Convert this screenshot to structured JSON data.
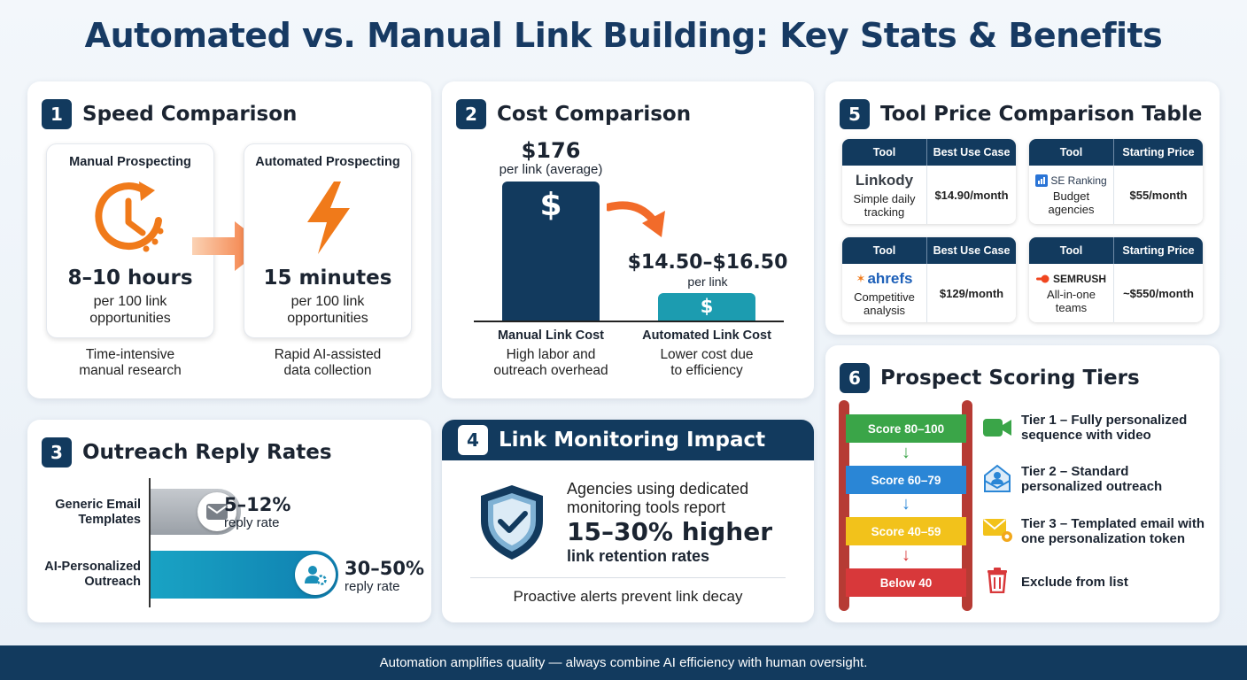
{
  "title": "Automated vs. Manual Link Building: Key Stats & Benefits",
  "speed": {
    "num": "1",
    "title": "Speed Comparison",
    "manual": {
      "label": "Manual Prospecting",
      "value": "8–10 hours",
      "sub1": "per 100 link",
      "sub2": "opportunities",
      "cap1": "Time-intensive",
      "cap2": "manual research",
      "icon": "clock-icon"
    },
    "auto": {
      "label": "Automated Prospecting",
      "value": "15 minutes",
      "sub1": "per 100 link",
      "sub2": "opportunities",
      "cap1": "Rapid AI-assisted",
      "cap2": "data collection",
      "icon": "lightning-icon"
    }
  },
  "cost": {
    "num": "2",
    "title": "Cost Comparison",
    "manual": {
      "value": "$176",
      "sub": "per link (average)",
      "label": "Manual Link Cost",
      "cap1": "High labor and",
      "cap2": "outreach overhead"
    },
    "auto": {
      "value": "$14.50–$16.50",
      "sub": "per link",
      "label": "Automated Link Cost",
      "cap1": "Lower cost due",
      "cap2": "to efficiency"
    },
    "dollar": "$"
  },
  "reply": {
    "num": "3",
    "title": "Outreach Reply Rates",
    "generic": {
      "label1": "Generic Email",
      "label2": "Templates",
      "value": "5–12%",
      "sub": "reply rate"
    },
    "ai": {
      "label1": "AI-Personalized",
      "label2": "Outreach",
      "value": "30–50%",
      "sub": "reply rate"
    }
  },
  "monitor": {
    "num": "4",
    "title": "Link Monitoring Impact",
    "line1": "Agencies using dedicated",
    "line2": "monitoring tools report",
    "big": "15–30% higher",
    "line3": "link retention rates",
    "footer": "Proactive alerts prevent link decay"
  },
  "tools": {
    "num": "5",
    "title": "Tool Price Comparison Table",
    "cards": [
      {
        "h1": "Tool",
        "h2": "Best Use Case",
        "name": "Linkody",
        "desc1": "Simple daily",
        "desc2": "tracking",
        "price": "$14.90/month"
      },
      {
        "h1": "Tool",
        "h2": "Starting Price",
        "name": "SE Ranking",
        "desc1": "Budget",
        "desc2": "agencies",
        "price": "$55/month"
      },
      {
        "h1": "Tool",
        "h2": "Best Use Case",
        "name": "ahrefs",
        "desc1": "Competitive",
        "desc2": "analysis",
        "price": "$129/month"
      },
      {
        "h1": "Tool",
        "h2": "Starting Price",
        "name": "SEMRUSH",
        "desc1": "All-in-one",
        "desc2": "teams",
        "price": "~$550/month"
      }
    ]
  },
  "tiers": {
    "num": "6",
    "title": "Prospect Scoring Tiers",
    "items": [
      {
        "score": "Score 80–100",
        "text1": "Tier 1 – Fully personalized",
        "text2": "sequence with video",
        "color": "#3aa548"
      },
      {
        "score": "Score 60–79",
        "text1": "Tier 2 – Standard",
        "text2": "personalized outreach",
        "color": "#2a86d6"
      },
      {
        "score": "Score 40–59",
        "text1": "Tier 3 – Templated email with",
        "text2": "one personalization token",
        "color": "#f2c21b"
      },
      {
        "score": "Below 40",
        "text1": "Exclude from list",
        "text2": "",
        "color": "#d8383a"
      }
    ]
  },
  "footer": "Automation amplifies quality — always combine AI efficiency with human oversight."
}
